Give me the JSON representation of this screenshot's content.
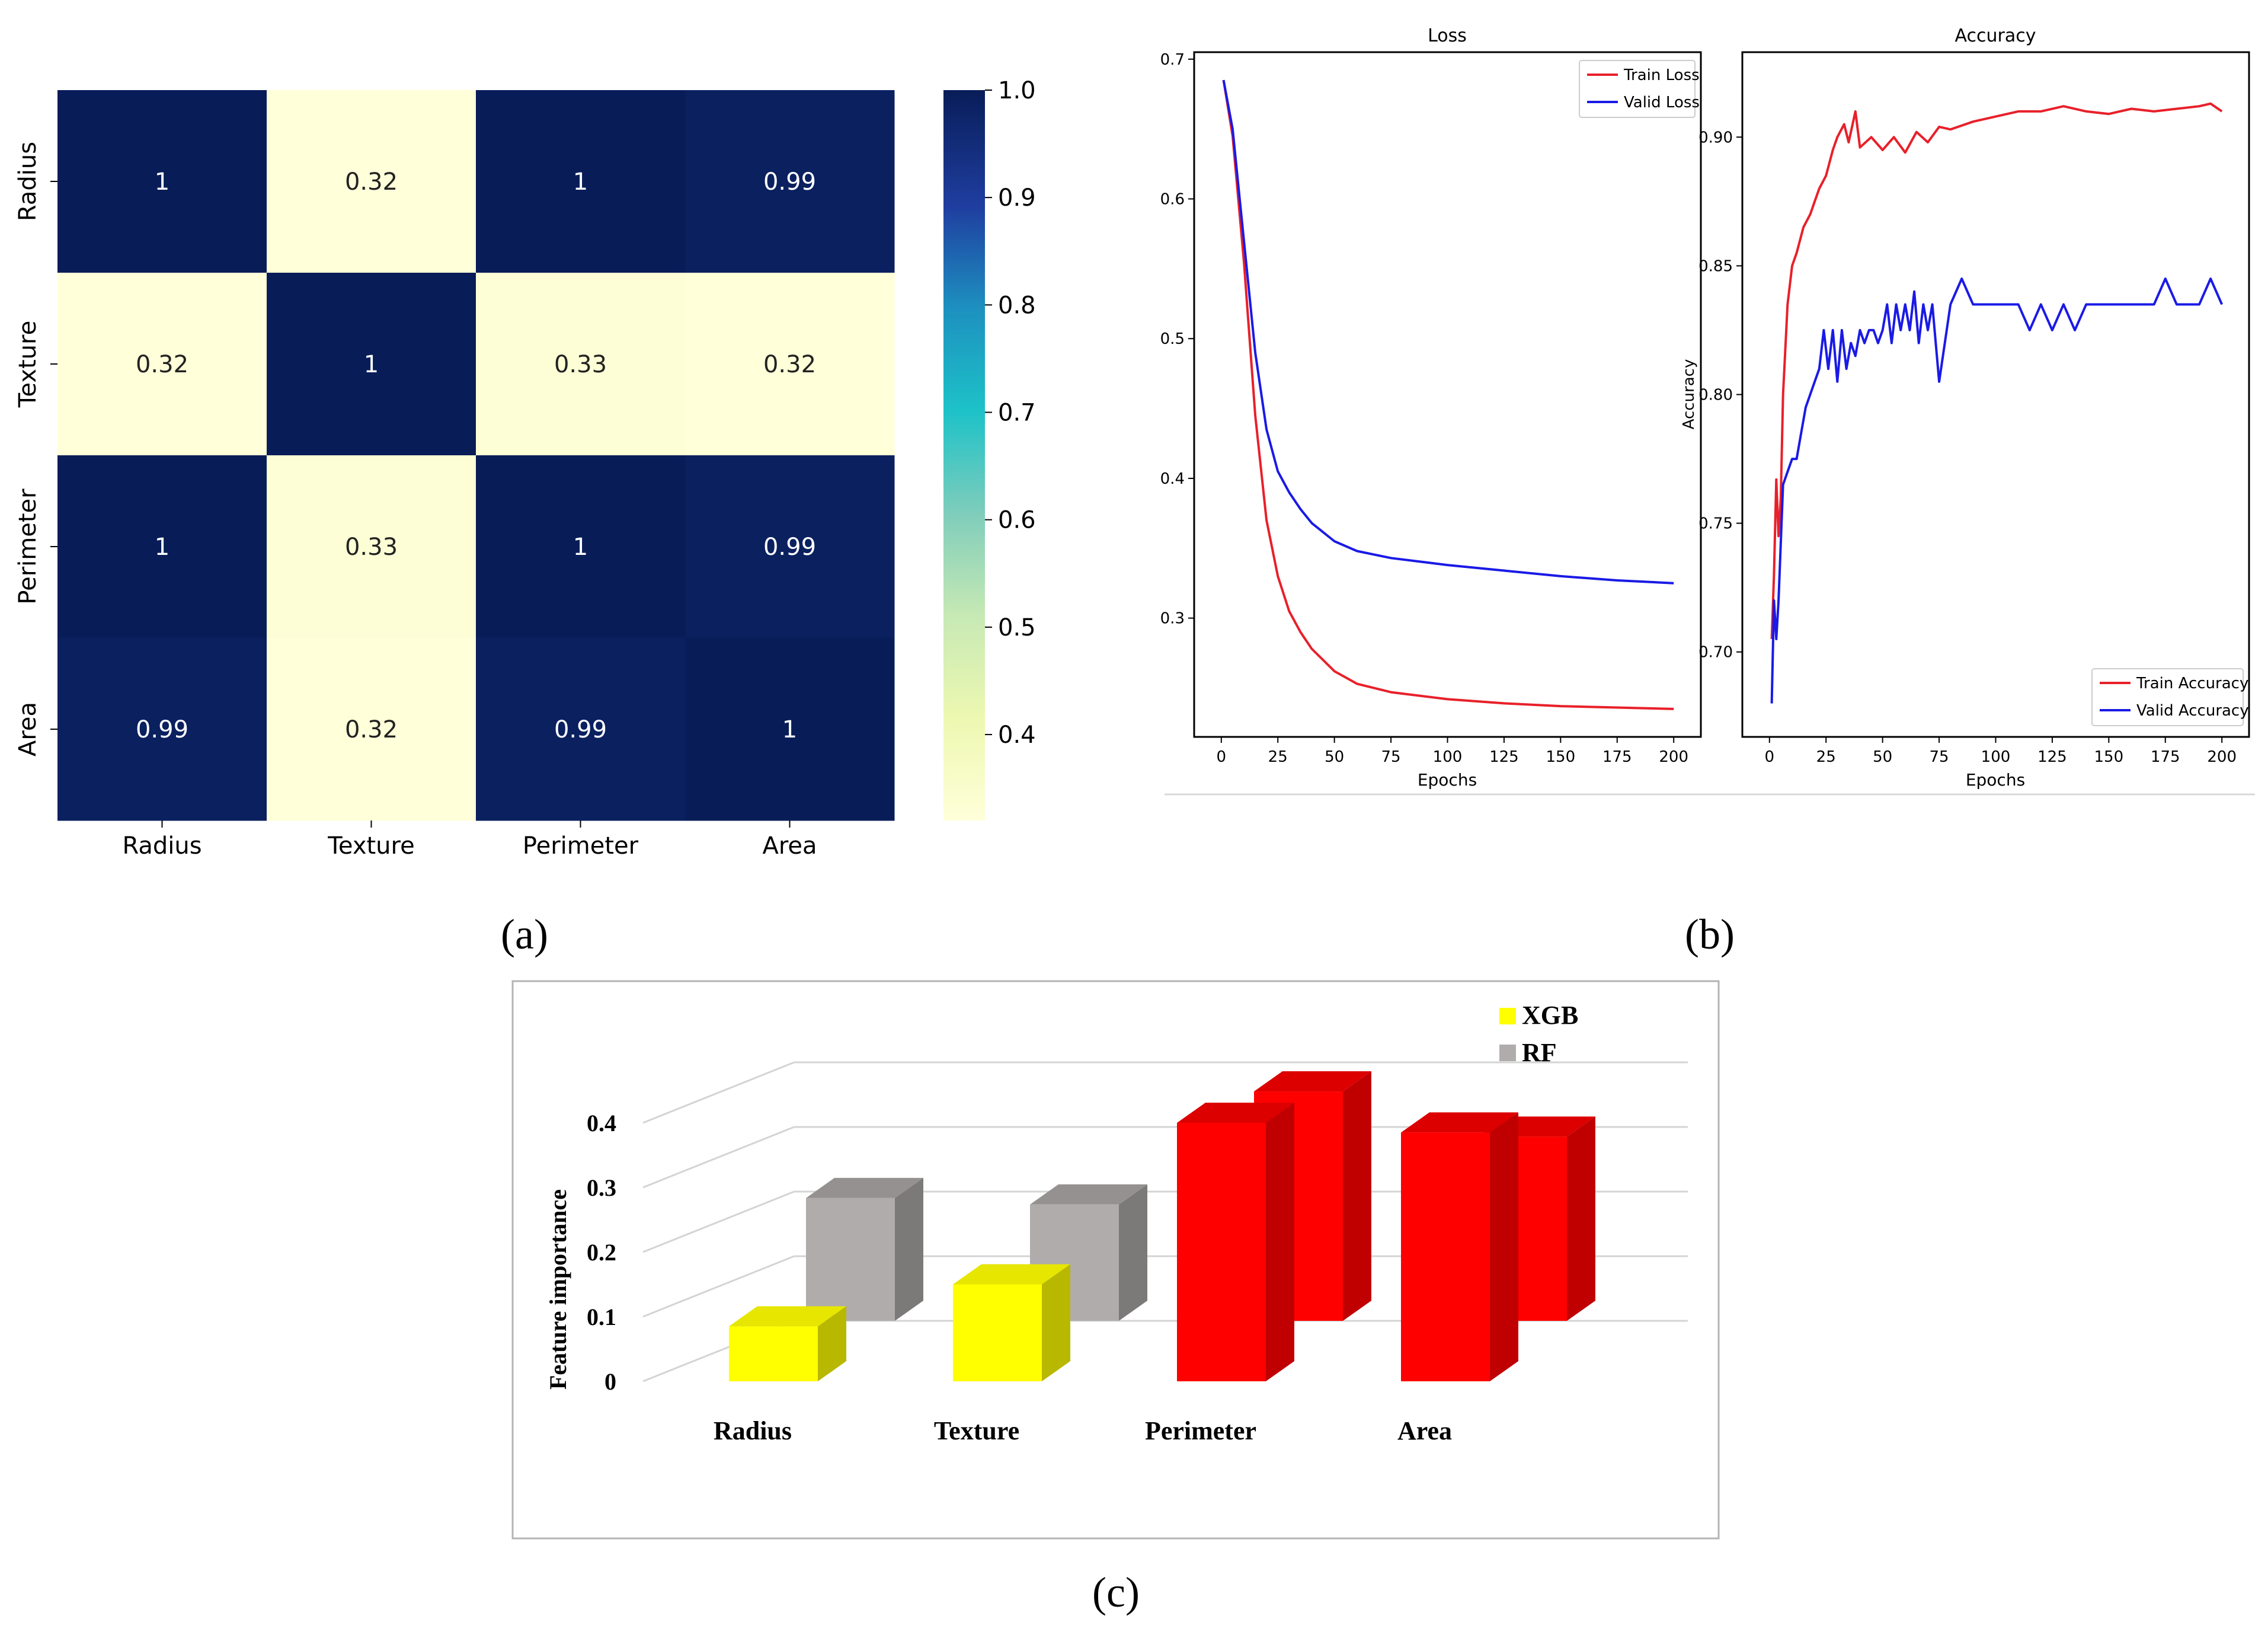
{
  "panel_labels": {
    "a": "(a)",
    "b": "(b)",
    "c": "(c)"
  },
  "colors": {
    "xgb": "#ffff00",
    "rf": "#b0acac",
    "high_importance": "#ff0000",
    "train": "#e8202a",
    "valid": "#1a1ae6"
  },
  "chart_data": [
    {
      "type": "heatmap",
      "panel": "(a)",
      "rows": [
        "Radius",
        "Texture",
        "Perimeter",
        "Area"
      ],
      "cols": [
        "Radius",
        "Texture",
        "Perimeter",
        "Area"
      ],
      "values": [
        [
          1,
          0.32,
          1,
          0.99
        ],
        [
          0.32,
          1,
          0.33,
          0.32
        ],
        [
          1,
          0.33,
          1,
          0.99
        ],
        [
          0.99,
          0.32,
          0.99,
          1
        ]
      ],
      "cell_labels": [
        [
          "1",
          "0.32",
          "1",
          "0.99"
        ],
        [
          "0.32",
          "1",
          "0.33",
          "0.32"
        ],
        [
          "1",
          "0.33",
          "1",
          "0.99"
        ],
        [
          "0.99",
          "0.32",
          "0.99",
          "1"
        ]
      ],
      "colorbar": {
        "min": 0.32,
        "max": 1.0,
        "ticks": [
          "1.0",
          "0.9",
          "0.8",
          "0.7",
          "0.6",
          "0.5",
          "0.4"
        ],
        "colormap": "YlGnBu"
      }
    },
    {
      "type": "line",
      "panel": "(b) Loss",
      "title": "Loss",
      "xlabel": "Epochs",
      "ylabel": "",
      "xlim": [
        -12,
        212
      ],
      "ylim": [
        0.215,
        0.705
      ],
      "xticks": [
        "0",
        "25",
        "50",
        "75",
        "100",
        "125",
        "150",
        "175",
        "200"
      ],
      "yticks": [
        "0.3",
        "0.4",
        "0.5",
        "0.6",
        "0.7"
      ],
      "legend": "top-right",
      "series": [
        {
          "name": "Train Loss",
          "color": "#e8202a",
          "x": [
            1,
            5,
            10,
            15,
            20,
            25,
            30,
            35,
            40,
            50,
            60,
            75,
            100,
            125,
            150,
            175,
            200
          ],
          "y": [
            0.685,
            0.645,
            0.555,
            0.445,
            0.37,
            0.33,
            0.305,
            0.29,
            0.278,
            0.262,
            0.253,
            0.247,
            0.242,
            0.239,
            0.237,
            0.236,
            0.235
          ]
        },
        {
          "name": "Valid Loss",
          "color": "#1a1ae6",
          "x": [
            1,
            5,
            10,
            15,
            20,
            25,
            30,
            35,
            40,
            50,
            60,
            75,
            100,
            125,
            150,
            175,
            200
          ],
          "y": [
            0.685,
            0.65,
            0.57,
            0.49,
            0.435,
            0.405,
            0.39,
            0.378,
            0.368,
            0.355,
            0.348,
            0.343,
            0.338,
            0.334,
            0.33,
            0.327,
            0.325
          ]
        }
      ]
    },
    {
      "type": "line",
      "panel": "(b) Accuracy",
      "title": "Accuracy",
      "xlabel": "Epochs",
      "ylabel": "Accuracy",
      "xlim": [
        -12,
        212
      ],
      "ylim": [
        0.667,
        0.933
      ],
      "xticks": [
        "0",
        "25",
        "50",
        "75",
        "100",
        "125",
        "150",
        "175",
        "200"
      ],
      "yticks": [
        "0.70",
        "0.75",
        "0.80",
        "0.85",
        "0.90"
      ],
      "legend": "bottom-right",
      "series": [
        {
          "name": "Train Accuracy",
          "color": "#e8202a",
          "x": [
            1,
            2,
            3,
            4,
            5,
            6,
            8,
            10,
            12,
            15,
            18,
            20,
            22,
            25,
            28,
            30,
            33,
            35,
            38,
            40,
            45,
            50,
            55,
            60,
            65,
            70,
            75,
            80,
            90,
            100,
            110,
            120,
            130,
            140,
            150,
            160,
            170,
            180,
            190,
            195,
            200
          ],
          "y": [
            0.705,
            0.73,
            0.767,
            0.745,
            0.76,
            0.8,
            0.835,
            0.85,
            0.855,
            0.865,
            0.87,
            0.875,
            0.88,
            0.885,
            0.895,
            0.9,
            0.905,
            0.898,
            0.91,
            0.896,
            0.9,
            0.895,
            0.9,
            0.894,
            0.902,
            0.898,
            0.904,
            0.903,
            0.906,
            0.908,
            0.91,
            0.91,
            0.912,
            0.91,
            0.909,
            0.911,
            0.91,
            0.911,
            0.912,
            0.913,
            0.91
          ]
        },
        {
          "name": "Valid Accuracy",
          "color": "#1a1ae6",
          "x": [
            1,
            2,
            3,
            4,
            6,
            8,
            10,
            12,
            14,
            16,
            18,
            20,
            22,
            24,
            26,
            28,
            30,
            32,
            34,
            36,
            38,
            40,
            42,
            44,
            46,
            48,
            50,
            52,
            54,
            56,
            58,
            60,
            62,
            64,
            66,
            68,
            70,
            72,
            75,
            80,
            85,
            90,
            100,
            110,
            115,
            120,
            125,
            130,
            135,
            140,
            150,
            160,
            170,
            175,
            180,
            190,
            195,
            200
          ],
          "y": [
            0.68,
            0.72,
            0.705,
            0.72,
            0.765,
            0.77,
            0.775,
            0.775,
            0.785,
            0.795,
            0.8,
            0.805,
            0.81,
            0.825,
            0.81,
            0.825,
            0.805,
            0.825,
            0.81,
            0.82,
            0.815,
            0.825,
            0.82,
            0.825,
            0.825,
            0.82,
            0.825,
            0.835,
            0.82,
            0.835,
            0.825,
            0.835,
            0.825,
            0.84,
            0.82,
            0.835,
            0.825,
            0.835,
            0.805,
            0.835,
            0.845,
            0.835,
            0.835,
            0.835,
            0.825,
            0.835,
            0.825,
            0.835,
            0.825,
            0.835,
            0.835,
            0.835,
            0.835,
            0.845,
            0.835,
            0.835,
            0.845,
            0.835
          ]
        }
      ]
    },
    {
      "type": "bar",
      "panel": "(c)",
      "title": "",
      "xlabel": "",
      "ylabel": "Feature importance",
      "ylim": [
        0,
        0.4
      ],
      "yticks": [
        "0",
        "0.1",
        "0.2",
        "0.3",
        "0.4"
      ],
      "categories": [
        "Radius",
        "Texture",
        "Perimeter",
        "Area"
      ],
      "legend": "top-right",
      "series": [
        {
          "name": "XGB",
          "color": "#ffff00",
          "values": [
            0.085,
            0.15,
            0.4,
            0.385
          ]
        },
        {
          "name": "RF",
          "color": "#b0acac",
          "values": [
            0.19,
            0.18,
            0.355,
            0.285
          ]
        }
      ]
    }
  ]
}
